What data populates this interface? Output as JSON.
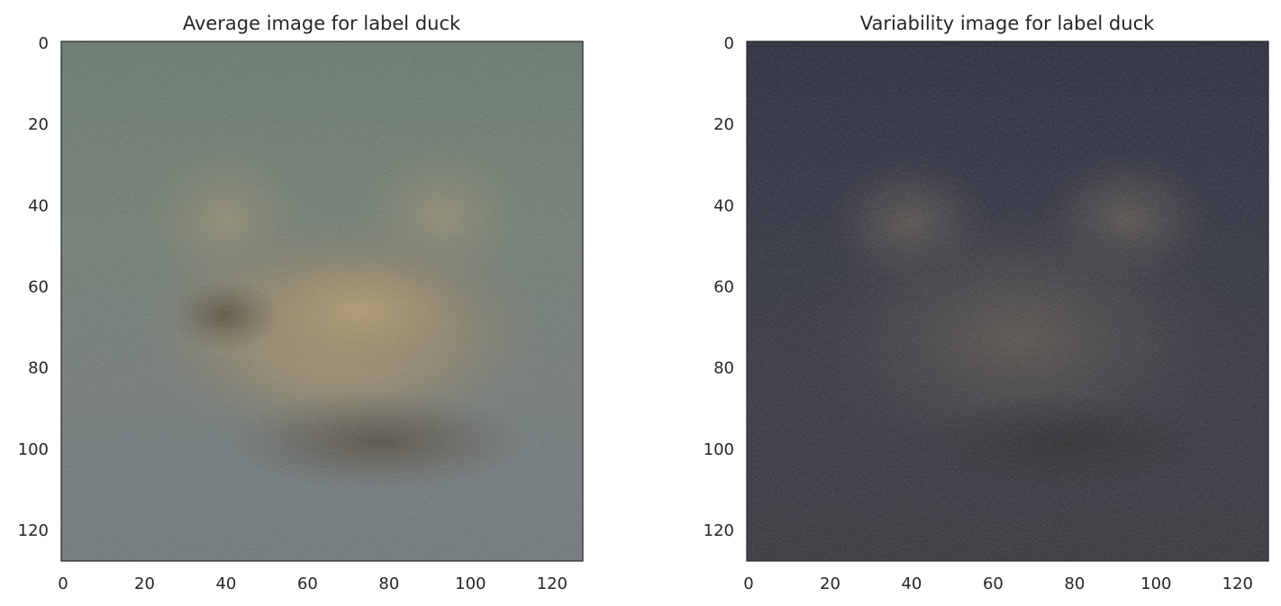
{
  "chart_data": [
    {
      "type": "image",
      "title": "Average image for label duck",
      "xlim": [
        0,
        128
      ],
      "ylim": [
        128,
        0
      ],
      "xticks": [
        0,
        20,
        40,
        60,
        80,
        100,
        120
      ],
      "yticks": [
        0,
        20,
        40,
        60,
        80,
        100,
        120
      ],
      "xtick_labels": [
        "0",
        "20",
        "40",
        "60",
        "80",
        "100",
        "120"
      ],
      "ytick_labels": [
        "0",
        "20",
        "40",
        "60",
        "80",
        "100",
        "120"
      ],
      "grid": false,
      "colors": {
        "top": "#6a7a68",
        "middle": "#8a8470",
        "center_blob": "#a89470",
        "bottom": "#6e7478",
        "edges": "#6d7c80"
      }
    },
    {
      "type": "image",
      "title": "Variability image for label duck",
      "xlim": [
        0,
        128
      ],
      "ylim": [
        128,
        0
      ],
      "xticks": [
        0,
        20,
        40,
        60,
        80,
        100,
        120
      ],
      "yticks": [
        0,
        20,
        40,
        60,
        80,
        100,
        120
      ],
      "xtick_labels": [
        "0",
        "20",
        "40",
        "60",
        "80",
        "100",
        "120"
      ],
      "ytick_labels": [
        "0",
        "20",
        "40",
        "60",
        "80",
        "100",
        "120"
      ],
      "grid": false,
      "colors": {
        "top": "#2a2d3e",
        "middle": "#3a3a45",
        "center_blob": "#55504c",
        "bottom": "#383840",
        "edges": "#2e3040"
      }
    }
  ]
}
